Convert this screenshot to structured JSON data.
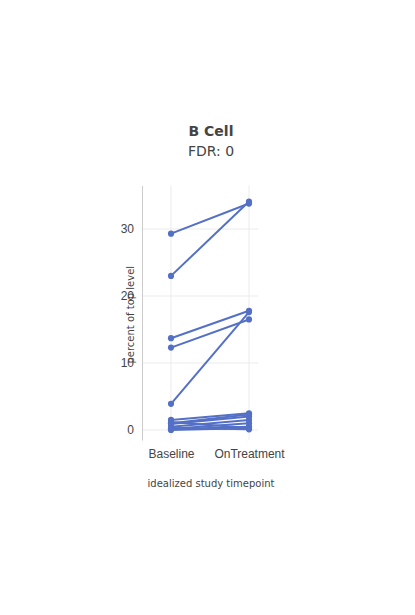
{
  "chart_data": {
    "type": "line",
    "title": "B Cell",
    "subtitle": "FDR: 0",
    "x_label": "idealized study timepoint",
    "y_label": "percent of top level",
    "categories": [
      "Baseline",
      "OnTreatment"
    ],
    "color": "#5470c6",
    "marker": "circle",
    "grid": true,
    "ylim": [
      -1.5,
      36.5
    ],
    "yticks": [
      0,
      10,
      20,
      30
    ],
    "series": [
      {
        "values": [
          29.3,
          33.8
        ]
      },
      {
        "values": [
          23.0,
          34.1
        ]
      },
      {
        "values": [
          13.7,
          17.8
        ]
      },
      {
        "values": [
          12.3,
          16.5
        ]
      },
      {
        "values": [
          3.9,
          17.6
        ]
      },
      {
        "values": [
          1.5,
          2.5
        ]
      },
      {
        "values": [
          1.2,
          0.3
        ]
      },
      {
        "values": [
          0.9,
          2.0
        ]
      },
      {
        "values": [
          1.0,
          2.3
        ]
      },
      {
        "values": [
          0.5,
          1.5
        ]
      },
      {
        "values": [
          0.2,
          1.0
        ]
      },
      {
        "values": [
          0.1,
          0.5
        ]
      },
      {
        "values": [
          0.0,
          0.3
        ]
      },
      {
        "values": [
          0.3,
          0.1
        ]
      }
    ]
  }
}
